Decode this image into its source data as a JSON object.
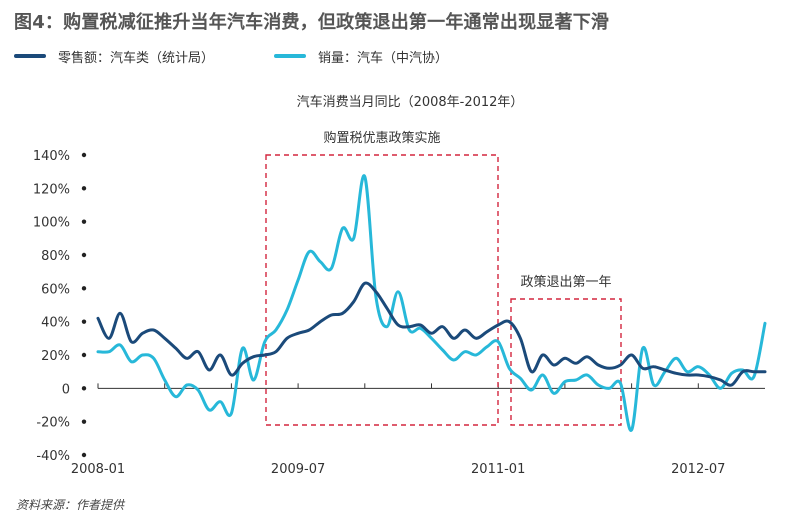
{
  "header": {
    "title": "图4：购置税减征推升当年汽车消费，但政策退出第一年通常出现显著下滑"
  },
  "legend": [
    {
      "label": "零售额：汽车类（统计局）",
      "color": "#1b4a7a"
    },
    {
      "label": "销量：汽车（中汽协）",
      "color": "#27b8d9"
    }
  ],
  "footer": {
    "source": "资料来源：作者提供"
  },
  "chart_data": {
    "type": "line",
    "title": "汽车消费当月同比（2008年-2012年）",
    "xlabel": "",
    "ylabel": "",
    "x_ticks": [
      "2008-01",
      "2009-07",
      "2011-01",
      "2012-07"
    ],
    "y_ticks": [
      "140%",
      "120%",
      "100%",
      "80%",
      "60%",
      "40%",
      "20%",
      "0",
      "-20%",
      "-40%"
    ],
    "ylim": [
      -40,
      140
    ],
    "x_range": [
      "2008-01",
      "2012-11"
    ],
    "grid": false,
    "legend_position": "top-left",
    "annotations": [
      {
        "label": "购置税优惠政策实施",
        "start": "2009-01",
        "end": "2010-12"
      },
      {
        "label": "政策退出第一年",
        "start": "2011-01",
        "end": "2011-12"
      }
    ],
    "series": [
      {
        "name": "零售额：汽车类（统计局）",
        "color": "#1b4a7a",
        "points": [
          [
            "2008-01",
            42
          ],
          [
            "2008-02",
            30
          ],
          [
            "2008-03",
            45
          ],
          [
            "2008-04",
            28
          ],
          [
            "2008-05",
            33
          ],
          [
            "2008-06",
            35
          ],
          [
            "2008-07",
            30
          ],
          [
            "2008-08",
            24
          ],
          [
            "2008-09",
            18
          ],
          [
            "2008-10",
            22
          ],
          [
            "2008-11",
            11
          ],
          [
            "2008-12",
            20
          ],
          [
            "2009-01",
            8
          ],
          [
            "2009-02",
            15
          ],
          [
            "2009-03",
            19
          ],
          [
            "2009-04",
            20
          ],
          [
            "2009-05",
            22
          ],
          [
            "2009-06",
            30
          ],
          [
            "2009-07",
            33
          ],
          [
            "2009-08",
            35
          ],
          [
            "2009-09",
            40
          ],
          [
            "2009-10",
            44
          ],
          [
            "2009-11",
            45
          ],
          [
            "2009-12",
            52
          ],
          [
            "2010-01",
            63
          ],
          [
            "2010-02",
            58
          ],
          [
            "2010-03",
            48
          ],
          [
            "2010-04",
            38
          ],
          [
            "2010-05",
            37
          ],
          [
            "2010-06",
            38
          ],
          [
            "2010-07",
            33
          ],
          [
            "2010-08",
            37
          ],
          [
            "2010-09",
            30
          ],
          [
            "2010-10",
            35
          ],
          [
            "2010-11",
            30
          ],
          [
            "2010-12",
            34
          ],
          [
            "2011-01",
            38
          ],
          [
            "2011-02",
            40
          ],
          [
            "2011-03",
            30
          ],
          [
            "2011-04",
            10
          ],
          [
            "2011-05",
            20
          ],
          [
            "2011-06",
            14
          ],
          [
            "2011-07",
            18
          ],
          [
            "2011-08",
            15
          ],
          [
            "2011-09",
            19
          ],
          [
            "2011-10",
            14
          ],
          [
            "2011-11",
            12
          ],
          [
            "2011-12",
            14
          ],
          [
            "2012-01",
            20
          ],
          [
            "2012-02",
            12
          ],
          [
            "2012-03",
            13
          ],
          [
            "2012-04",
            11
          ],
          [
            "2012-05",
            9
          ],
          [
            "2012-06",
            8
          ],
          [
            "2012-07",
            8
          ],
          [
            "2012-08",
            7
          ],
          [
            "2012-09",
            5
          ],
          [
            "2012-10",
            2
          ],
          [
            "2012-11",
            10
          ],
          [
            "2012-12",
            10
          ],
          [
            "2013-01",
            10
          ]
        ]
      },
      {
        "name": "销量：汽车（中汽协）",
        "color": "#27b8d9",
        "points": [
          [
            "2008-01",
            22
          ],
          [
            "2008-02",
            22
          ],
          [
            "2008-03",
            26
          ],
          [
            "2008-04",
            16
          ],
          [
            "2008-05",
            20
          ],
          [
            "2008-06",
            18
          ],
          [
            "2008-07",
            5
          ],
          [
            "2008-08",
            -5
          ],
          [
            "2008-09",
            2
          ],
          [
            "2008-10",
            -1
          ],
          [
            "2008-11",
            -13
          ],
          [
            "2008-12",
            -8
          ],
          [
            "2009-01",
            -15
          ],
          [
            "2009-02",
            24
          ],
          [
            "2009-03",
            5
          ],
          [
            "2009-04",
            28
          ],
          [
            "2009-05",
            35
          ],
          [
            "2009-06",
            47
          ],
          [
            "2009-07",
            65
          ],
          [
            "2009-08",
            82
          ],
          [
            "2009-09",
            76
          ],
          [
            "2009-10",
            72
          ],
          [
            "2009-11",
            96
          ],
          [
            "2009-12",
            90
          ],
          [
            "2010-01",
            127
          ],
          [
            "2010-02",
            55
          ],
          [
            "2010-03",
            37
          ],
          [
            "2010-04",
            58
          ],
          [
            "2010-05",
            35
          ],
          [
            "2010-06",
            36
          ],
          [
            "2010-07",
            30
          ],
          [
            "2010-08",
            23
          ],
          [
            "2010-09",
            17
          ],
          [
            "2010-10",
            22
          ],
          [
            "2010-11",
            20
          ],
          [
            "2010-12",
            25
          ],
          [
            "2011-01",
            28
          ],
          [
            "2011-02",
            12
          ],
          [
            "2011-03",
            6
          ],
          [
            "2011-04",
            -1
          ],
          [
            "2011-05",
            8
          ],
          [
            "2011-06",
            -3
          ],
          [
            "2011-07",
            4
          ],
          [
            "2011-08",
            5
          ],
          [
            "2011-09",
            8
          ],
          [
            "2011-10",
            2
          ],
          [
            "2011-11",
            0
          ],
          [
            "2011-12",
            3
          ],
          [
            "2012-01",
            -25
          ],
          [
            "2012-02",
            24
          ],
          [
            "2012-03",
            2
          ],
          [
            "2012-04",
            10
          ],
          [
            "2012-05",
            18
          ],
          [
            "2012-06",
            10
          ],
          [
            "2012-07",
            13
          ],
          [
            "2012-08",
            8
          ],
          [
            "2012-09",
            0
          ],
          [
            "2012-10",
            9
          ],
          [
            "2012-11",
            11
          ],
          [
            "2012-12",
            7
          ],
          [
            "2013-01",
            39
          ]
        ]
      }
    ]
  }
}
